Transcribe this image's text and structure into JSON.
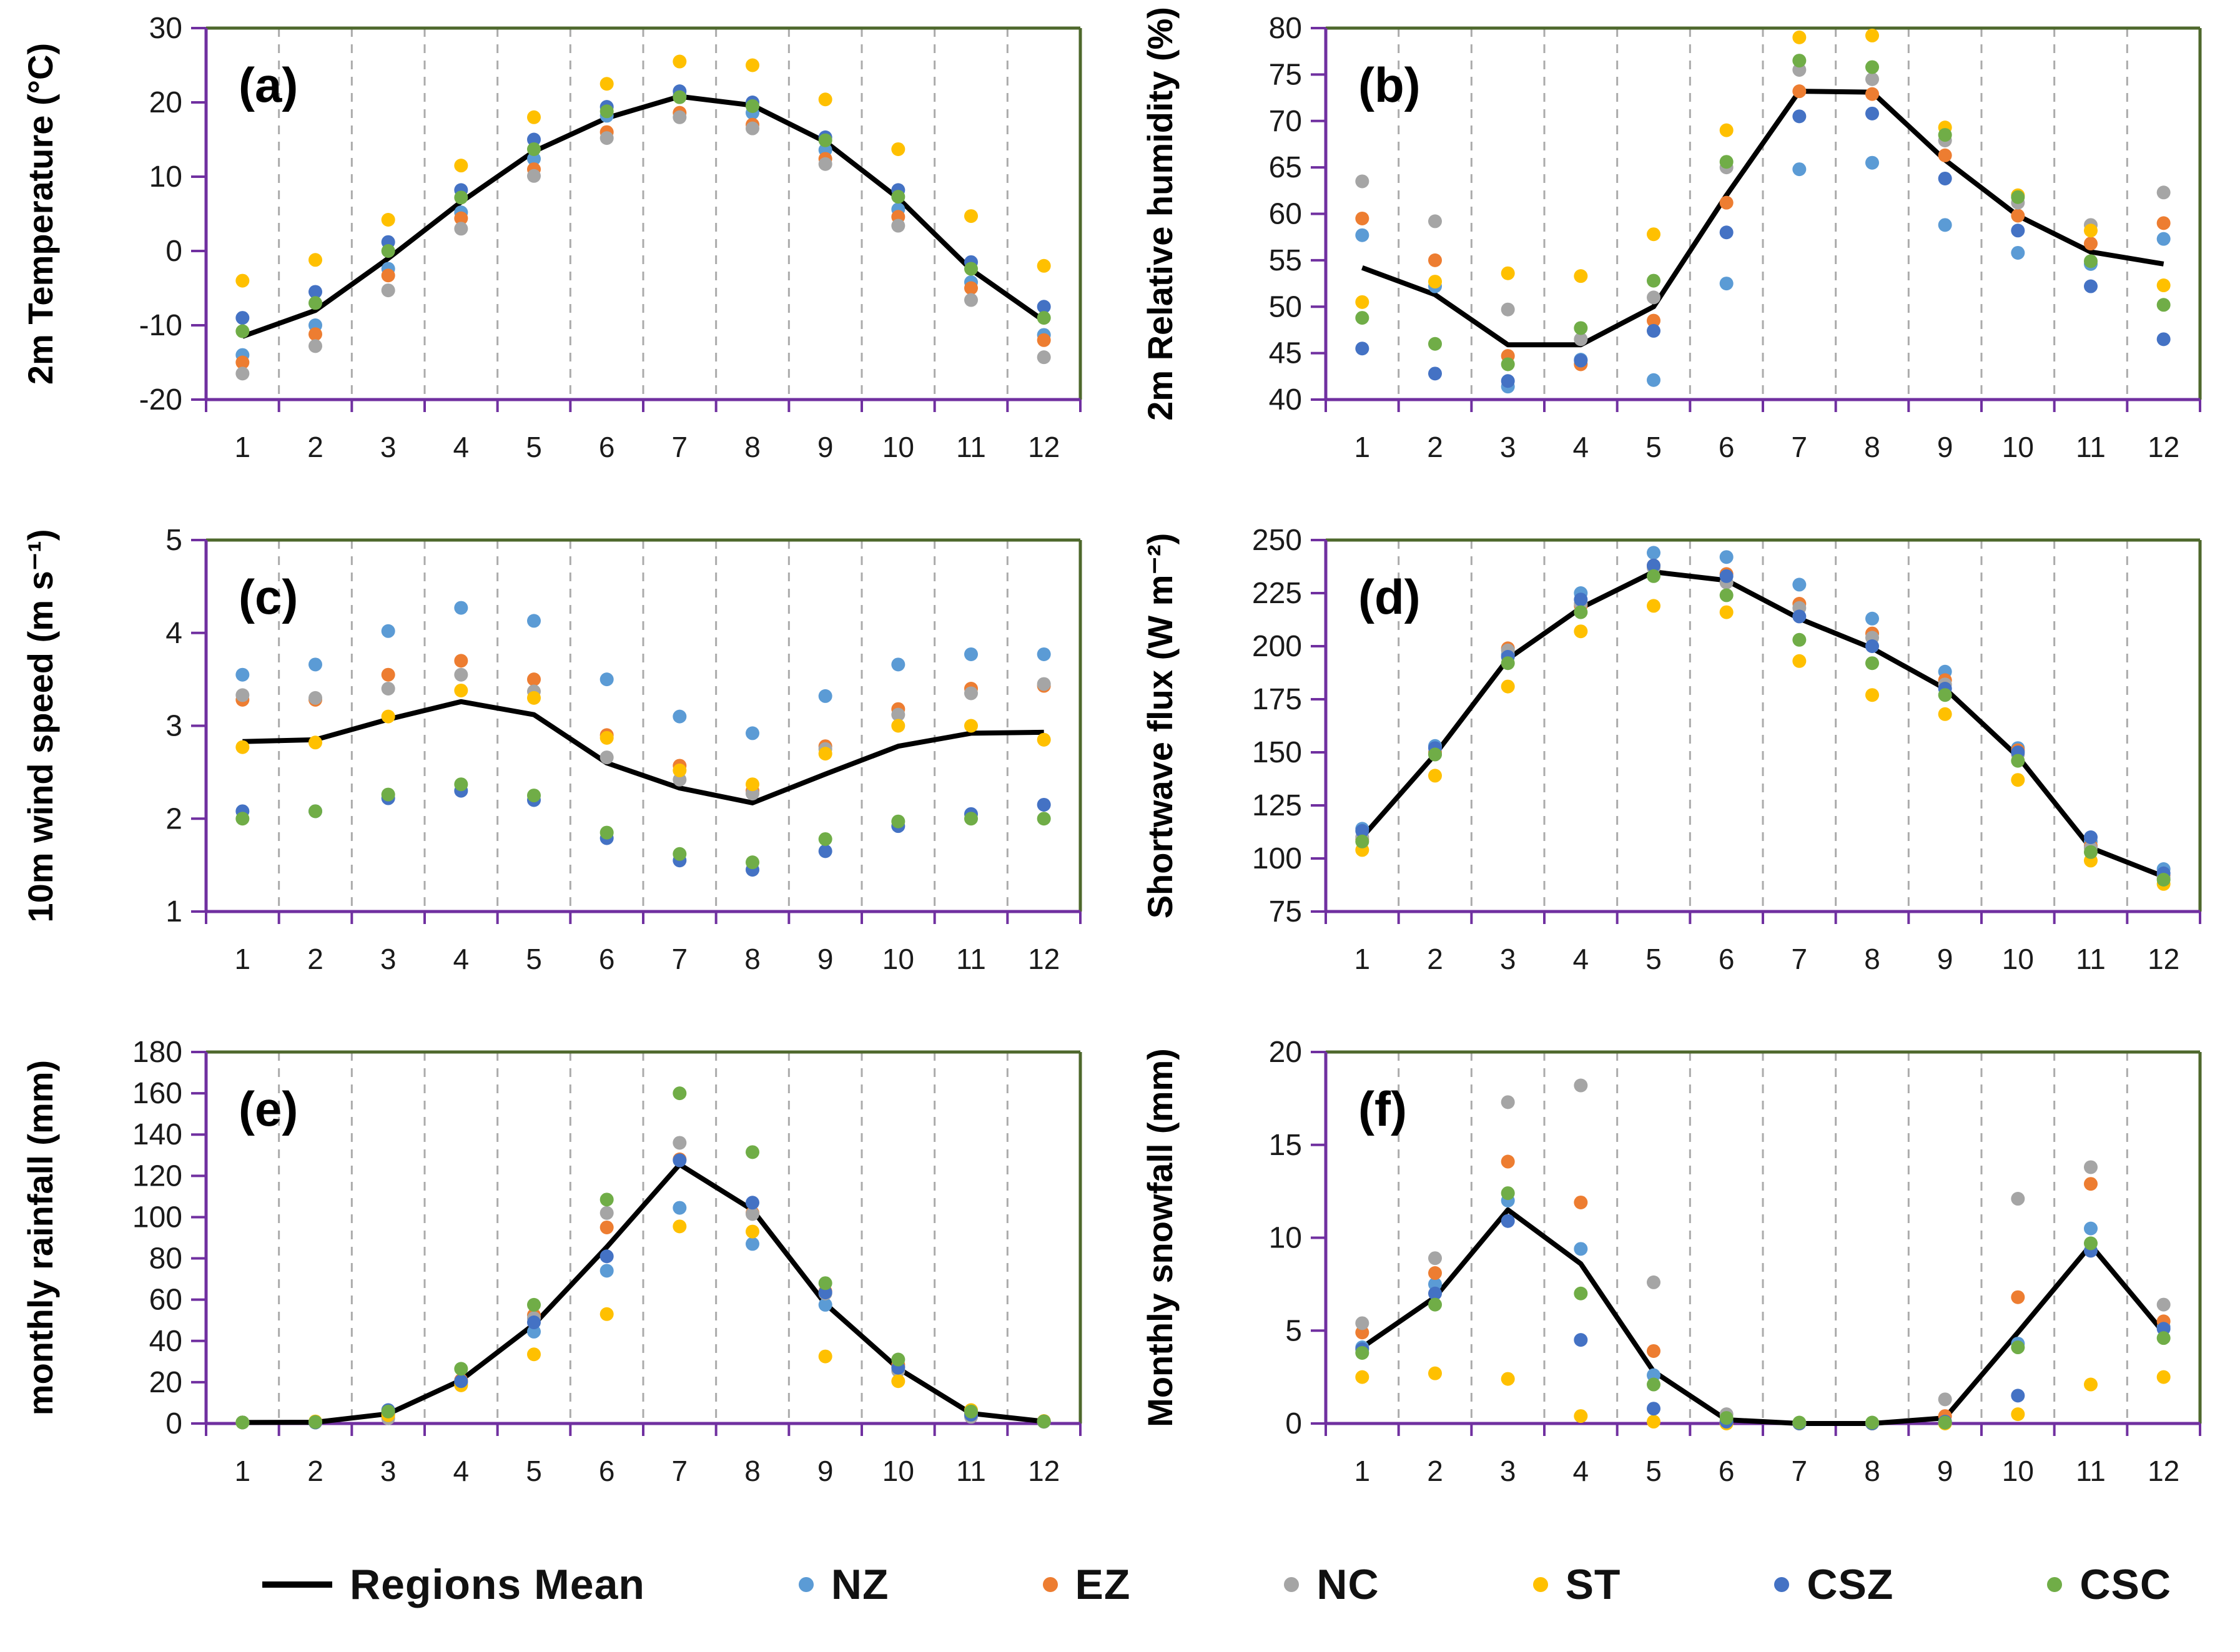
{
  "figure": {
    "background": "#ffffff"
  },
  "style": {
    "axis_color": "#7030A0",
    "border_color": "#4E682C",
    "gridline_color": "#ABABAB",
    "tick_label_color": "#1A1A1A",
    "mean_line_color": "#000000",
    "panel_label_color": "#000000"
  },
  "legend": {
    "items": [
      {
        "id": "mean",
        "label": "Regions Mean",
        "type": "line",
        "color": "#000000"
      },
      {
        "id": "NZ",
        "label": "NZ",
        "type": "dot",
        "color": "#5B9BD5"
      },
      {
        "id": "EZ",
        "label": "EZ",
        "type": "dot",
        "color": "#ED7D31"
      },
      {
        "id": "NC",
        "label": "NC",
        "type": "dot",
        "color": "#A5A5A5"
      },
      {
        "id": "ST",
        "label": "ST",
        "type": "dot",
        "color": "#FFC000"
      },
      {
        "id": "CSZ",
        "label": "CSZ",
        "type": "dot",
        "color": "#4472C4"
      },
      {
        "id": "CSC",
        "label": "CSC",
        "type": "dot",
        "color": "#70AD47"
      }
    ]
  },
  "chart_data": {
    "type": "scatter",
    "x": [
      1,
      2,
      3,
      4,
      5,
      6,
      7,
      8,
      9,
      10,
      11,
      12
    ],
    "xlabel": "",
    "legend_position": "bottom",
    "grid": "vertical-dashed",
    "panels": [
      {
        "id": "a",
        "title": "(a)",
        "ylabel": "2m Temperature (°C)",
        "ylim": [
          -20,
          30
        ],
        "yticks": [
          -20,
          -10,
          0,
          10,
          20,
          30
        ],
        "series": [
          {
            "name": "NZ",
            "values": [
              -14.0,
              -10.0,
              -2.4,
              5.2,
              12.4,
              18.2,
              20.9,
              18.6,
              13.6,
              5.6,
              -4.2,
              -11.3
            ]
          },
          {
            "name": "EZ",
            "values": [
              -15.0,
              -11.2,
              -3.3,
              4.4,
              11.0,
              16.0,
              18.6,
              17.0,
              12.4,
              4.6,
              -5.0,
              -12.0
            ]
          },
          {
            "name": "NC",
            "values": [
              -16.5,
              -12.8,
              -5.3,
              3.0,
              10.1,
              15.2,
              18.0,
              16.5,
              11.7,
              3.4,
              -6.6,
              -14.3
            ]
          },
          {
            "name": "ST",
            "values": [
              -4.0,
              -1.2,
              4.2,
              11.5,
              18.0,
              22.5,
              25.5,
              25.0,
              20.4,
              13.7,
              4.7,
              -2.0
            ]
          },
          {
            "name": "CSZ",
            "values": [
              -9.0,
              -5.5,
              1.2,
              8.2,
              15.0,
              19.4,
              21.5,
              20.0,
              15.3,
              8.2,
              -1.5,
              -7.5
            ]
          },
          {
            "name": "CSC",
            "values": [
              -10.8,
              -7.0,
              0.0,
              7.2,
              13.7,
              18.8,
              20.7,
              19.5,
              14.9,
              7.3,
              -2.4,
              -9.0
            ]
          }
        ],
        "mean": {
          "name": "Regions Mean",
          "values": [
            -11.5,
            -8.0,
            -1.0,
            6.6,
            13.4,
            17.9,
            20.8,
            19.6,
            14.7,
            7.1,
            -2.5,
            -9.4
          ]
        }
      },
      {
        "id": "b",
        "title": "(b)",
        "ylabel": "2m Relative humidity (%)",
        "ylim": [
          40,
          80
        ],
        "yticks": [
          40,
          45,
          50,
          55,
          60,
          65,
          70,
          75,
          80
        ],
        "series": [
          {
            "name": "NZ",
            "values": [
              57.7,
              52.2,
              41.4,
              44.3,
              42.1,
              52.5,
              64.8,
              65.5,
              58.8,
              55.8,
              54.6,
              57.3
            ]
          },
          {
            "name": "EZ",
            "values": [
              59.5,
              55.0,
              44.7,
              43.8,
              48.5,
              61.2,
              73.2,
              72.9,
              66.3,
              59.8,
              56.8,
              59.0
            ]
          },
          {
            "name": "NC",
            "values": [
              63.5,
              59.2,
              49.7,
              46.5,
              51.0,
              65.0,
              75.5,
              74.5,
              67.9,
              61.2,
              58.8,
              62.3
            ]
          },
          {
            "name": "ST",
            "values": [
              50.5,
              52.7,
              53.6,
              53.3,
              57.8,
              69.0,
              79.0,
              79.2,
              69.3,
              62.0,
              58.2,
              52.3
            ]
          },
          {
            "name": "CSZ",
            "values": [
              45.5,
              42.8,
              42.0,
              44.2,
              47.4,
              58.0,
              70.5,
              70.8,
              63.8,
              58.2,
              52.2,
              46.5
            ]
          },
          {
            "name": "CSC",
            "values": [
              48.8,
              46.0,
              43.8,
              47.7,
              52.8,
              65.6,
              76.5,
              75.8,
              68.5,
              61.8,
              54.9,
              50.2
            ]
          }
        ],
        "mean": {
          "name": "Regions Mean",
          "values": [
            54.2,
            51.3,
            45.9,
            45.9,
            50.0,
            62.0,
            73.2,
            73.1,
            65.8,
            59.8,
            55.9,
            54.6
          ]
        }
      },
      {
        "id": "c",
        "title": "(c)",
        "ylabel": "10m wind speed (m s⁻¹)",
        "ylim": [
          1,
          5
        ],
        "yticks": [
          1,
          2,
          3,
          4,
          5
        ],
        "series": [
          {
            "name": "NZ",
            "values": [
              3.55,
              3.66,
              4.02,
              4.27,
              4.13,
              3.5,
              3.1,
              2.92,
              3.32,
              3.66,
              3.77,
              3.77
            ]
          },
          {
            "name": "EZ",
            "values": [
              3.28,
              3.28,
              3.55,
              3.7,
              3.5,
              2.9,
              2.57,
              2.3,
              2.78,
              3.18,
              3.4,
              3.43
            ]
          },
          {
            "name": "NC",
            "values": [
              3.33,
              3.3,
              3.4,
              3.55,
              3.37,
              2.66,
              2.42,
              2.27,
              2.75,
              3.12,
              3.35,
              3.45
            ]
          },
          {
            "name": "ST",
            "values": [
              2.77,
              2.82,
              3.1,
              3.38,
              3.3,
              2.87,
              2.52,
              2.37,
              2.7,
              3.0,
              3.0,
              2.85
            ]
          },
          {
            "name": "CSZ",
            "values": [
              2.08,
              2.08,
              2.22,
              2.3,
              2.2,
              1.79,
              1.55,
              1.45,
              1.65,
              1.92,
              2.05,
              2.15
            ]
          },
          {
            "name": "CSC",
            "values": [
              2.0,
              2.08,
              2.26,
              2.37,
              2.25,
              1.85,
              1.62,
              1.53,
              1.78,
              1.97,
              2.0,
              2.0
            ]
          }
        ],
        "mean": {
          "name": "Regions Mean",
          "values": [
            2.83,
            2.85,
            3.07,
            3.26,
            3.12,
            2.6,
            2.33,
            2.17,
            2.48,
            2.78,
            2.92,
            2.93
          ]
        }
      },
      {
        "id": "d",
        "title": "(d)",
        "ylabel": "Shortwave flux (W m⁻²)",
        "ylim": [
          75,
          250
        ],
        "yticks": [
          75,
          100,
          125,
          150,
          175,
          200,
          225,
          250
        ],
        "series": [
          {
            "name": "NZ",
            "values": [
              114,
              153,
              196,
              225,
              244,
              242,
              229,
              213,
              188,
              152,
              108,
              95
            ]
          },
          {
            "name": "EZ",
            "values": [
              109,
              150,
              199,
              219,
              238,
              234,
              220,
              206,
              184,
              151,
              106,
              92
            ]
          },
          {
            "name": "NC",
            "values": [
              110,
              149,
              198,
              220,
              237,
              230,
              218,
              204,
              182,
              149,
              105,
              91
            ]
          },
          {
            "name": "ST",
            "values": [
              104,
              139,
              181,
              207,
              219,
              216,
              193,
              177,
              168,
              137,
              99,
              88
            ]
          },
          {
            "name": "CSZ",
            "values": [
              113,
              152,
              195,
              222,
              238,
              233,
              214,
              200,
              180,
              150,
              110,
              93
            ]
          },
          {
            "name": "CSC",
            "values": [
              108,
              149,
              192,
              216,
              233,
              224,
              203,
              192,
              177,
              146,
              103,
              90
            ]
          }
        ],
        "mean": {
          "name": "Regions Mean",
          "values": [
            110,
            149,
            194,
            218,
            235,
            231,
            213,
            199,
            180,
            148,
            105,
            91.5
          ]
        }
      },
      {
        "id": "e",
        "title": "(e)",
        "ylabel": "monthly rainfall (mm)",
        "ylim": [
          0,
          180
        ],
        "yticks": [
          0,
          20,
          40,
          60,
          80,
          100,
          120,
          140,
          160,
          180
        ],
        "series": [
          {
            "name": "NZ",
            "values": [
              0.5,
              0.5,
              5.0,
              20.0,
              44.5,
              74.0,
              104.5,
              87.0,
              57.5,
              27.5,
              4.8,
              1.0
            ]
          },
          {
            "name": "EZ",
            "values": [
              0.5,
              0.5,
              4.5,
              21.0,
              52.5,
              95.0,
              128.0,
              102.0,
              64.0,
              28.5,
              4.5,
              1.0
            ]
          },
          {
            "name": "NC",
            "values": [
              0.5,
              0.5,
              2.5,
              19.0,
              51.0,
              102.0,
              136.0,
              101.5,
              63.0,
              25.5,
              3.2,
              0.8
            ]
          },
          {
            "name": "ST",
            "values": [
              0.5,
              1.0,
              4.0,
              18.5,
              33.5,
              53.0,
              95.5,
              93.0,
              32.5,
              20.5,
              6.5,
              1.2
            ]
          },
          {
            "name": "CSZ",
            "values": [
              0.5,
              0.5,
              6.5,
              20.5,
              49.0,
              81.0,
              127.5,
              107.0,
              63.5,
              27.0,
              4.3,
              1.0
            ]
          },
          {
            "name": "CSC",
            "values": [
              0.5,
              0.7,
              5.8,
              26.5,
              57.5,
              108.5,
              160.0,
              131.5,
              68.0,
              31.0,
              5.8,
              1.0
            ]
          }
        ],
        "mean": {
          "name": "Regions Mean",
          "values": [
            0.5,
            0.6,
            4.7,
            21.0,
            48.0,
            85.5,
            125.5,
            103.5,
            58.0,
            26.7,
            4.9,
            1.0
          ]
        }
      },
      {
        "id": "f",
        "title": "(f)",
        "ylabel": "Monthly snowfall (mm)",
        "ylim": [
          0,
          20
        ],
        "yticks": [
          0,
          5,
          10,
          15,
          20
        ],
        "series": [
          {
            "name": "NZ",
            "values": [
              4.1,
              7.5,
              12.0,
              9.4,
              2.6,
              0.1,
              0,
              0,
              0.1,
              4.3,
              10.5,
              5.2
            ]
          },
          {
            "name": "EZ",
            "values": [
              4.9,
              8.1,
              14.1,
              11.9,
              3.9,
              0.1,
              0,
              0,
              0.4,
              6.8,
              12.9,
              5.5
            ]
          },
          {
            "name": "NC",
            "values": [
              5.4,
              8.9,
              17.3,
              18.2,
              7.6,
              0.5,
              0,
              0,
              1.3,
              12.1,
              13.8,
              6.4
            ]
          },
          {
            "name": "ST",
            "values": [
              2.5,
              2.7,
              2.4,
              0.4,
              0.1,
              0,
              0,
              0,
              0,
              0.5,
              2.1,
              2.5
            ]
          },
          {
            "name": "CSZ",
            "values": [
              4.0,
              7.0,
              10.9,
              4.5,
              0.8,
              0.1,
              0,
              0,
              0.1,
              1.5,
              9.3,
              5.1
            ]
          },
          {
            "name": "CSC",
            "values": [
              3.8,
              6.4,
              12.4,
              7.0,
              2.1,
              0.3,
              0.05,
              0.05,
              0.05,
              4.1,
              9.7,
              4.6
            ]
          }
        ],
        "mean": {
          "name": "Regions Mean",
          "values": [
            4.1,
            6.8,
            11.5,
            8.6,
            2.8,
            0.2,
            0,
            0,
            0.3,
            4.9,
            9.6,
            4.9
          ]
        }
      }
    ]
  }
}
